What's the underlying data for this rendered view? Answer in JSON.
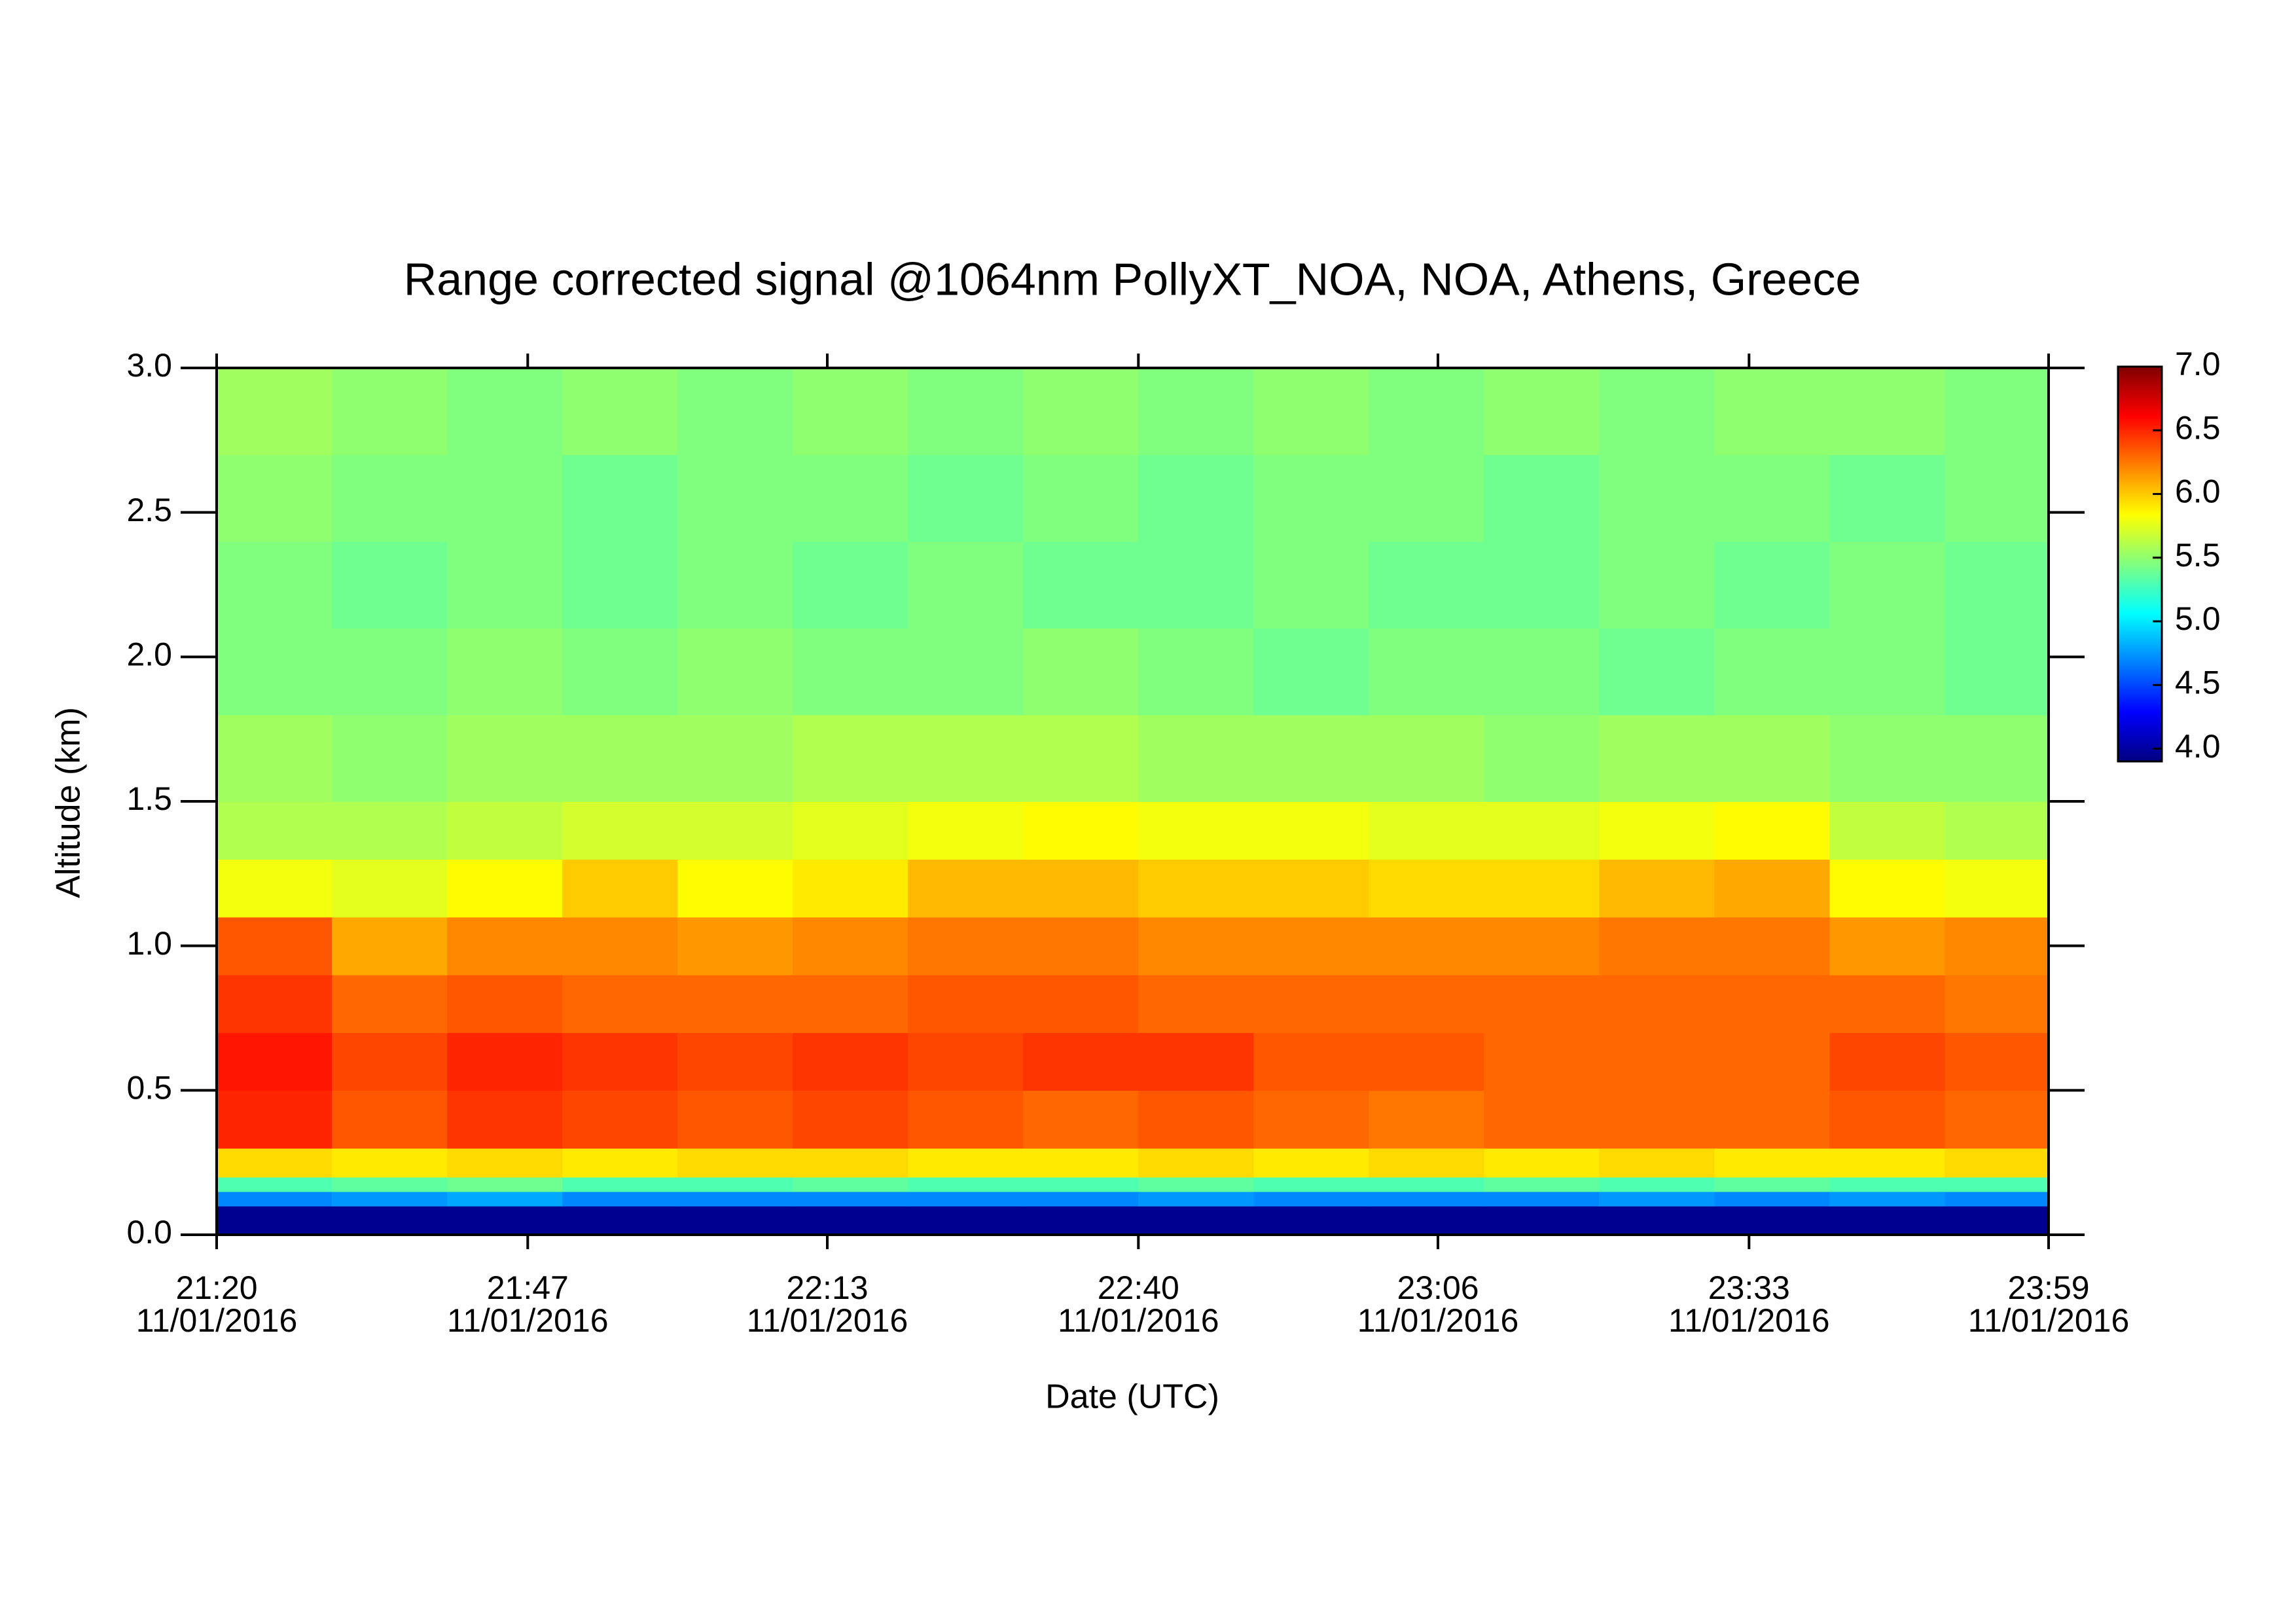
{
  "chart_data": {
    "type": "heatmap",
    "title": "Range corrected signal @1064nm  PollyXT_NOA, NOA, Athens, Greece",
    "x_label": "Date (UTC)",
    "y_label": "Altitude (km)",
    "date": "11/01/2016",
    "xlim": [
      "21:20",
      "23:59"
    ],
    "xticks": [
      "21:20",
      "21:47",
      "22:13",
      "22:40",
      "23:06",
      "23:33",
      "23:59"
    ],
    "ylim": [
      0,
      3
    ],
    "yticks": [
      {
        "value": 0,
        "label": "0.0"
      },
      {
        "value": 0.5,
        "label": "0.5"
      },
      {
        "value": 1,
        "label": "1.0"
      },
      {
        "value": 1.5,
        "label": "1.5"
      },
      {
        "value": 2,
        "label": "2.0"
      },
      {
        "value": 2.5,
        "label": "2.5"
      },
      {
        "value": 3,
        "label": "3.0"
      }
    ],
    "colormap": "jet",
    "zlim": [
      3.9,
      7.0
    ],
    "zticks": [
      {
        "value": 4,
        "label": "4.0"
      },
      {
        "value": 4.5,
        "label": "4.5"
      },
      {
        "value": 5,
        "label": "5.0"
      },
      {
        "value": 5.5,
        "label": "5.5"
      },
      {
        "value": 6,
        "label": "6.0"
      },
      {
        "value": 6.5,
        "label": "6.5"
      },
      {
        "value": 7,
        "label": "7.0"
      }
    ],
    "xbins": [
      "21:20",
      "21:30",
      "21:40",
      "21:50",
      "22:00",
      "22:10",
      "22:20",
      "22:30",
      "22:40",
      "22:50",
      "23:00",
      "23:10",
      "23:20",
      "23:30",
      "23:40",
      "23:50",
      "23:59"
    ],
    "ybins": [
      0,
      0.1,
      0.15,
      0.2,
      0.3,
      0.5,
      0.7,
      0.9,
      1.1,
      1.3,
      1.5,
      1.8,
      2.1,
      2.4,
      2.7,
      3.0
    ],
    "z": [
      [
        3.95,
        3.95,
        3.95,
        3.95,
        3.95,
        3.95,
        3.95,
        3.95,
        3.95,
        3.95,
        3.95,
        3.95,
        3.95,
        3.95,
        3.95,
        3.95
      ],
      [
        4.7,
        4.75,
        4.8,
        4.7,
        4.7,
        4.7,
        4.7,
        4.7,
        4.75,
        4.7,
        4.7,
        4.7,
        4.75,
        4.7,
        4.75,
        4.7
      ],
      [
        5.3,
        5.35,
        5.4,
        5.3,
        5.3,
        5.35,
        5.3,
        5.3,
        5.35,
        5.3,
        5.3,
        5.35,
        5.3,
        5.35,
        5.3,
        5.3
      ],
      [
        5.95,
        5.9,
        5.95,
        5.9,
        5.95,
        5.95,
        5.9,
        5.9,
        5.95,
        5.9,
        5.95,
        5.9,
        5.95,
        5.9,
        5.9,
        5.95
      ],
      [
        6.5,
        6.35,
        6.45,
        6.4,
        6.35,
        6.4,
        6.35,
        6.3,
        6.35,
        6.3,
        6.25,
        6.3,
        6.3,
        6.3,
        6.35,
        6.3
      ],
      [
        6.55,
        6.4,
        6.5,
        6.45,
        6.4,
        6.45,
        6.4,
        6.45,
        6.45,
        6.35,
        6.35,
        6.3,
        6.3,
        6.3,
        6.4,
        6.35
      ],
      [
        6.45,
        6.3,
        6.35,
        6.3,
        6.3,
        6.3,
        6.35,
        6.35,
        6.3,
        6.3,
        6.3,
        6.3,
        6.3,
        6.3,
        6.3,
        6.25
      ],
      [
        6.35,
        6.1,
        6.2,
        6.2,
        6.15,
        6.2,
        6.25,
        6.25,
        6.2,
        6.2,
        6.2,
        6.2,
        6.25,
        6.25,
        6.15,
        6.2
      ],
      [
        5.8,
        5.75,
        5.85,
        6.0,
        5.85,
        5.9,
        6.05,
        6.05,
        6.0,
        6.0,
        5.95,
        5.95,
        6.05,
        6.1,
        5.85,
        5.8
      ],
      [
        5.6,
        5.6,
        5.65,
        5.7,
        5.7,
        5.75,
        5.8,
        5.85,
        5.8,
        5.8,
        5.75,
        5.75,
        5.8,
        5.85,
        5.65,
        5.6
      ],
      [
        5.55,
        5.5,
        5.55,
        5.55,
        5.55,
        5.6,
        5.6,
        5.6,
        5.55,
        5.55,
        5.55,
        5.5,
        5.55,
        5.55,
        5.5,
        5.5
      ],
      [
        5.45,
        5.45,
        5.5,
        5.45,
        5.5,
        5.45,
        5.45,
        5.5,
        5.45,
        5.4,
        5.45,
        5.45,
        5.4,
        5.45,
        5.45,
        5.4
      ],
      [
        5.45,
        5.4,
        5.45,
        5.4,
        5.45,
        5.4,
        5.45,
        5.4,
        5.4,
        5.45,
        5.4,
        5.4,
        5.45,
        5.4,
        5.45,
        5.4
      ],
      [
        5.5,
        5.45,
        5.45,
        5.4,
        5.45,
        5.45,
        5.4,
        5.45,
        5.4,
        5.45,
        5.45,
        5.4,
        5.45,
        5.45,
        5.4,
        5.45
      ],
      [
        5.55,
        5.5,
        5.45,
        5.5,
        5.45,
        5.5,
        5.45,
        5.5,
        5.45,
        5.5,
        5.45,
        5.5,
        5.45,
        5.5,
        5.5,
        5.45
      ]
    ]
  }
}
